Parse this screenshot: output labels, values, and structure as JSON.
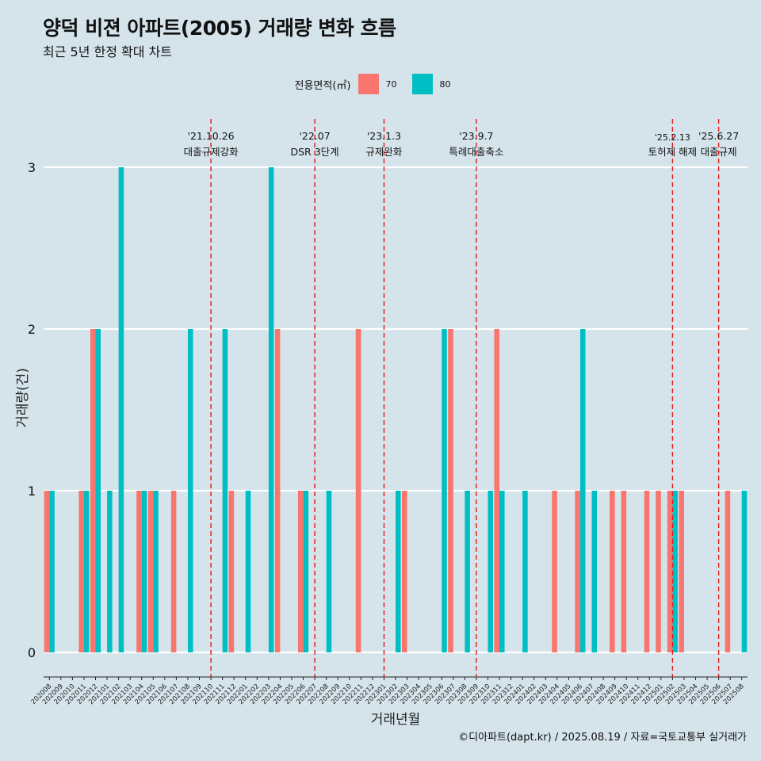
{
  "title": "양덕 비젼 아파트(2005) 거래량 변화 흐름",
  "subtitle": "최근 5년 한정 확대 차트",
  "caption": "©디아파트(dapt.kr) / 2025.08.19 / 자료=국토교통부 실거래가",
  "legend": {
    "title": "전용면적(㎡)",
    "items": [
      {
        "label": "70",
        "color": "#f8766d"
      },
      {
        "label": "80",
        "color": "#00bfc4"
      }
    ]
  },
  "chart_data": {
    "type": "bar",
    "xlabel": "거래년월",
    "ylabel": "거래량(건)",
    "ylim": [
      0,
      3
    ],
    "yticks": [
      0,
      1,
      2,
      3
    ],
    "grid": true,
    "legend_position": "top",
    "categories": [
      "202008",
      "202009",
      "202010",
      "202011",
      "202012",
      "202101",
      "202102",
      "202103",
      "202104",
      "202105",
      "202106",
      "202107",
      "202108",
      "202109",
      "202110",
      "202111",
      "202112",
      "202201",
      "202202",
      "202203",
      "202204",
      "202205",
      "202206",
      "202207",
      "202208",
      "202209",
      "202210",
      "202211",
      "202212",
      "202301",
      "202302",
      "202303",
      "202304",
      "202305",
      "202306",
      "202307",
      "202308",
      "202309",
      "202310",
      "202311",
      "202312",
      "202401",
      "202402",
      "202403",
      "202404",
      "202405",
      "202406",
      "202407",
      "202408",
      "202409",
      "202410",
      "202411",
      "202412",
      "202501",
      "202502",
      "202503",
      "202504",
      "202505",
      "202506",
      "202507",
      "202508"
    ],
    "series": [
      {
        "name": "70",
        "color": "#f8766d",
        "values": [
          1,
          0,
          0,
          1,
          2,
          0,
          0,
          0,
          1,
          1,
          0,
          1,
          0,
          0,
          0,
          0,
          1,
          0,
          0,
          0,
          2,
          0,
          1,
          0,
          0,
          0,
          0,
          2,
          0,
          0,
          0,
          1,
          0,
          0,
          0,
          2,
          0,
          0,
          0,
          2,
          0,
          0,
          0,
          0,
          1,
          0,
          1,
          0,
          0,
          1,
          1,
          0,
          1,
          1,
          1,
          1,
          0,
          0,
          0,
          1,
          0
        ]
      },
      {
        "name": "80",
        "color": "#00bfc4",
        "values": [
          1,
          0,
          0,
          1,
          2,
          1,
          3,
          0,
          1,
          1,
          0,
          0,
          2,
          0,
          0,
          2,
          0,
          1,
          0,
          3,
          0,
          0,
          1,
          0,
          1,
          0,
          0,
          0,
          0,
          0,
          1,
          0,
          0,
          0,
          2,
          0,
          1,
          0,
          1,
          1,
          0,
          1,
          0,
          0,
          0,
          0,
          2,
          1,
          0,
          0,
          0,
          0,
          0,
          0,
          1,
          0,
          0,
          0,
          0,
          0,
          1
        ]
      }
    ],
    "annotations": [
      {
        "category": "202110",
        "date": "'21.10.26",
        "text": "대출규제강화"
      },
      {
        "category": "202207",
        "date": "'22.07",
        "text": "DSR 3단계"
      },
      {
        "category": "202301",
        "date": "'23.1.3",
        "text": "규제완화"
      },
      {
        "category": "202309",
        "date": "'23.9.7",
        "text": "특례대출축소"
      },
      {
        "category": "202502",
        "date": "'25.2.13",
        "text": "토허제 해제"
      },
      {
        "category": "202506",
        "date": "'25.6.27",
        "text": "대출규제"
      }
    ]
  }
}
